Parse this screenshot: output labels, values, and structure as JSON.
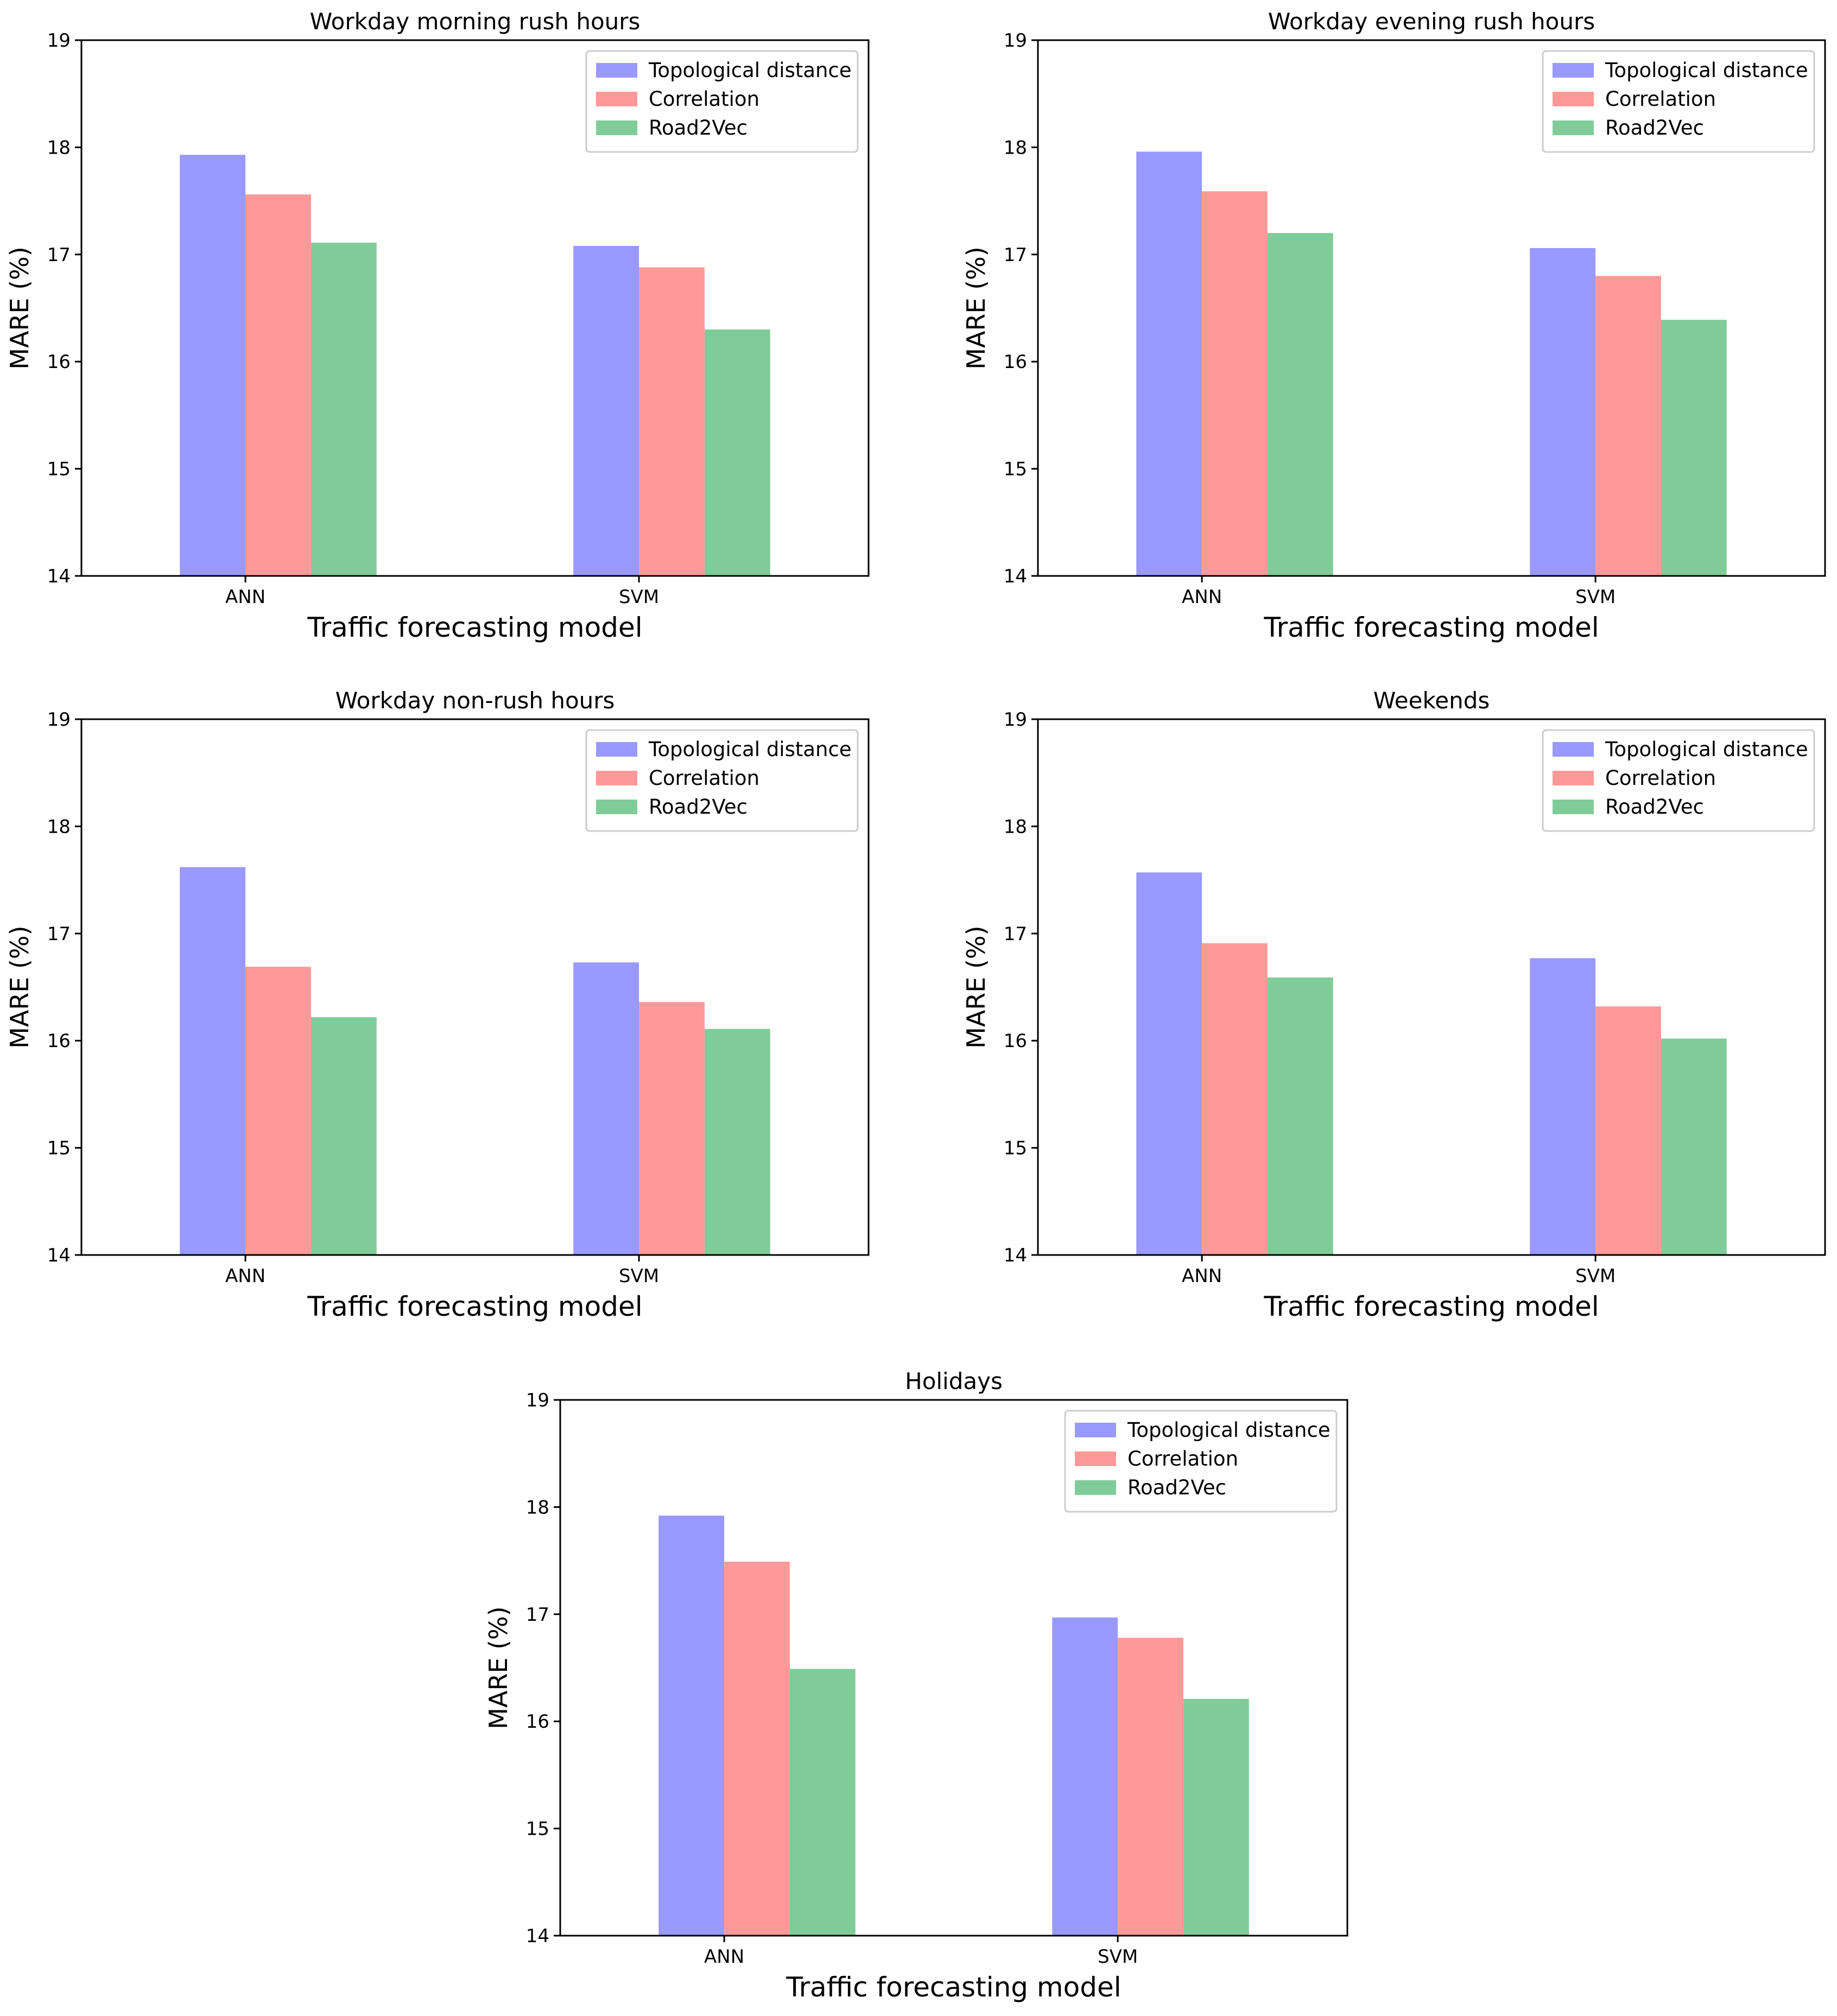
{
  "figure": {
    "series_colors": {
      "Topological distance": "#9999ff",
      "Correlation": "#ff9999",
      "Road2Vec": "#80cc99"
    }
  },
  "chart_data": [
    {
      "type": "bar",
      "title": "Workday morning rush hours",
      "xlabel": "Traffic forecasting model",
      "ylabel": "MARE (%)",
      "ylim": [
        14,
        19
      ],
      "yticks": [
        "14",
        "15",
        "16",
        "17",
        "18",
        "19"
      ],
      "categories": [
        "ANN",
        "SVM"
      ],
      "legend_position": "top-right",
      "series": [
        {
          "name": "Topological distance",
          "values": [
            17.93,
            17.08
          ]
        },
        {
          "name": "Correlation",
          "values": [
            17.56,
            16.88
          ]
        },
        {
          "name": "Road2Vec",
          "values": [
            17.11,
            16.3
          ]
        }
      ]
    },
    {
      "type": "bar",
      "title": "Workday evening rush hours",
      "xlabel": "Traffic forecasting model",
      "ylabel": "MARE (%)",
      "ylim": [
        14,
        19
      ],
      "yticks": [
        "14",
        "15",
        "16",
        "17",
        "18",
        "19"
      ],
      "categories": [
        "ANN",
        "SVM"
      ],
      "legend_position": "top-right",
      "series": [
        {
          "name": "Topological distance",
          "values": [
            17.96,
            17.06
          ]
        },
        {
          "name": "Correlation",
          "values": [
            17.59,
            16.8
          ]
        },
        {
          "name": "Road2Vec",
          "values": [
            17.2,
            16.39
          ]
        }
      ]
    },
    {
      "type": "bar",
      "title": "Workday non-rush hours",
      "xlabel": "Traffic forecasting model",
      "ylabel": "MARE (%)",
      "ylim": [
        14,
        19
      ],
      "yticks": [
        "14",
        "15",
        "16",
        "17",
        "18",
        "19"
      ],
      "categories": [
        "ANN",
        "SVM"
      ],
      "legend_position": "top-right",
      "series": [
        {
          "name": "Topological distance",
          "values": [
            17.62,
            16.73
          ]
        },
        {
          "name": "Correlation",
          "values": [
            16.69,
            16.36
          ]
        },
        {
          "name": "Road2Vec",
          "values": [
            16.22,
            16.11
          ]
        }
      ]
    },
    {
      "type": "bar",
      "title": "Weekends",
      "xlabel": "Traffic forecasting model",
      "ylabel": "MARE (%)",
      "ylim": [
        14,
        19
      ],
      "yticks": [
        "14",
        "15",
        "16",
        "17",
        "18",
        "19"
      ],
      "categories": [
        "ANN",
        "SVM"
      ],
      "legend_position": "top-right",
      "series": [
        {
          "name": "Topological distance",
          "values": [
            17.57,
            16.77
          ]
        },
        {
          "name": "Correlation",
          "values": [
            16.91,
            16.32
          ]
        },
        {
          "name": "Road2Vec",
          "values": [
            16.59,
            16.02
          ]
        }
      ]
    },
    {
      "type": "bar",
      "title": "Holidays",
      "xlabel": "Traffic forecasting model",
      "ylabel": "MARE (%)",
      "ylim": [
        14,
        19
      ],
      "yticks": [
        "14",
        "15",
        "16",
        "17",
        "18",
        "19"
      ],
      "categories": [
        "ANN",
        "SVM"
      ],
      "legend_position": "top-right",
      "series": [
        {
          "name": "Topological distance",
          "values": [
            17.92,
            16.97
          ]
        },
        {
          "name": "Correlation",
          "values": [
            17.49,
            16.78
          ]
        },
        {
          "name": "Road2Vec",
          "values": [
            16.49,
            16.21
          ]
        }
      ]
    }
  ]
}
